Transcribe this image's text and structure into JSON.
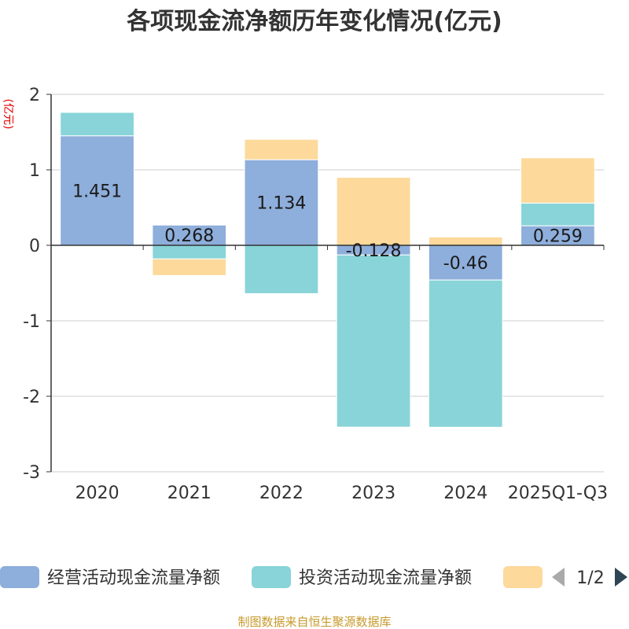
{
  "chart_data": {
    "type": "bar",
    "stacked": true,
    "title": "各项现金流净额历年变化情况(亿元)",
    "ylabel": "(亿元)",
    "xlabel": "",
    "categories": [
      "2020",
      "2021",
      "2022",
      "2023",
      "2024",
      "2025Q1-Q3"
    ],
    "ylim": [
      -3,
      2
    ],
    "yticks": [
      2,
      1,
      0,
      -1,
      -2,
      -3
    ],
    "grid": true,
    "series": [
      {
        "name": "经营活动现金流量净额",
        "color": "#8eaedb",
        "values": [
          1.451,
          0.268,
          1.134,
          -0.128,
          -0.46,
          0.259
        ],
        "show_labels": true
      },
      {
        "name": "投资活动现金流量净额",
        "color": "#88d4d8",
        "values": [
          0.31,
          -0.18,
          -0.64,
          -2.28,
          -1.95,
          0.3
        ],
        "show_labels": false
      },
      {
        "name": "",
        "color": "#fdd99b",
        "values": [
          0.0,
          -0.22,
          0.27,
          0.9,
          0.11,
          0.6
        ],
        "show_labels": false
      }
    ],
    "data_labels": [
      "1.451",
      "0.268",
      "1.134",
      "-0.128",
      "-0.46",
      "0.259"
    ],
    "legend": {
      "position": "bottom",
      "page": "1/2"
    },
    "source": "制图数据来自恒生聚源数据库"
  }
}
